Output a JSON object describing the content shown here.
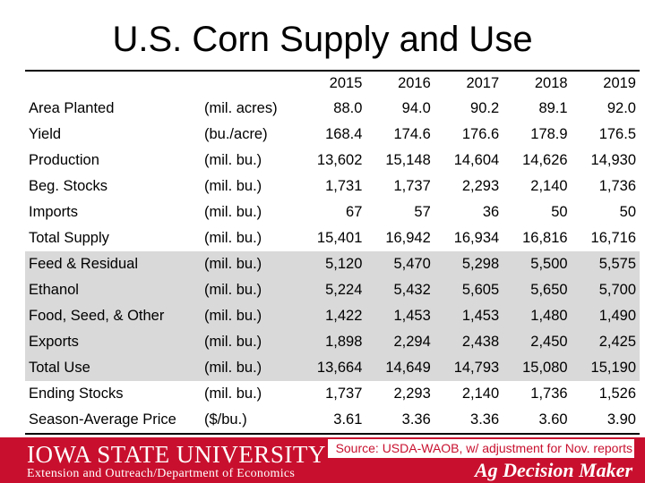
{
  "title": "U.S. Corn Supply and Use",
  "years": [
    "2015",
    "2016",
    "2017",
    "2018",
    "2019"
  ],
  "rows": [
    {
      "label": "Area Planted",
      "unit": "(mil. acres)",
      "values": [
        "88.0",
        "94.0",
        "90.2",
        "89.1",
        "92.0"
      ],
      "shaded": false
    },
    {
      "label": "Yield",
      "unit": "(bu./acre)",
      "values": [
        "168.4",
        "174.6",
        "176.6",
        "178.9",
        "176.5"
      ],
      "shaded": false
    },
    {
      "label": "Production",
      "unit": "(mil. bu.)",
      "values": [
        "13,602",
        "15,148",
        "14,604",
        "14,626",
        "14,930"
      ],
      "shaded": false
    },
    {
      "label": "Beg. Stocks",
      "unit": "(mil. bu.)",
      "values": [
        "1,731",
        "1,737",
        "2,293",
        "2,140",
        "1,736"
      ],
      "shaded": false
    },
    {
      "label": "Imports",
      "unit": "(mil. bu.)",
      "values": [
        "67",
        "57",
        "36",
        "50",
        "50"
      ],
      "shaded": false
    },
    {
      "label": "Total Supply",
      "unit": "(mil. bu.)",
      "values": [
        "15,401",
        "16,942",
        "16,934",
        "16,816",
        "16,716"
      ],
      "shaded": false
    },
    {
      "label": "Feed & Residual",
      "unit": "(mil. bu.)",
      "values": [
        "5,120",
        "5,470",
        "5,298",
        "5,500",
        "5,575"
      ],
      "shaded": true
    },
    {
      "label": "Ethanol",
      "unit": "(mil. bu.)",
      "values": [
        "5,224",
        "5,432",
        "5,605",
        "5,650",
        "5,700"
      ],
      "shaded": true
    },
    {
      "label": "Food, Seed, & Other",
      "unit": "(mil. bu.)",
      "values": [
        "1,422",
        "1,453",
        "1,453",
        "1,480",
        "1,490"
      ],
      "shaded": true
    },
    {
      "label": "Exports",
      "unit": "(mil. bu.)",
      "values": [
        "1,898",
        "2,294",
        "2,438",
        "2,450",
        "2,425"
      ],
      "shaded": true
    },
    {
      "label": "Total Use",
      "unit": "(mil. bu.)",
      "values": [
        "13,664",
        "14,649",
        "14,793",
        "15,080",
        "15,190"
      ],
      "shaded": true
    },
    {
      "label": "Ending Stocks",
      "unit": "(mil. bu.)",
      "values": [
        "1,737",
        "2,293",
        "2,140",
        "1,736",
        "1,526"
      ],
      "shaded": false
    },
    {
      "label": "Season-Average Price",
      "unit": "($/bu.)",
      "values": [
        "3.61",
        "3.36",
        "3.36",
        "3.60",
        "3.90"
      ],
      "shaded": false
    }
  ],
  "footer": {
    "university": "IOWA STATE UNIVERSITY",
    "department": "Extension and Outreach/Department of Economics",
    "source": "Source: USDA-WAOB, w/ adjustment for Nov. reports",
    "brand": "Ag Decision Maker"
  },
  "colors": {
    "brand_red": "#c8102e",
    "use_shading": "#d9d9d9"
  }
}
